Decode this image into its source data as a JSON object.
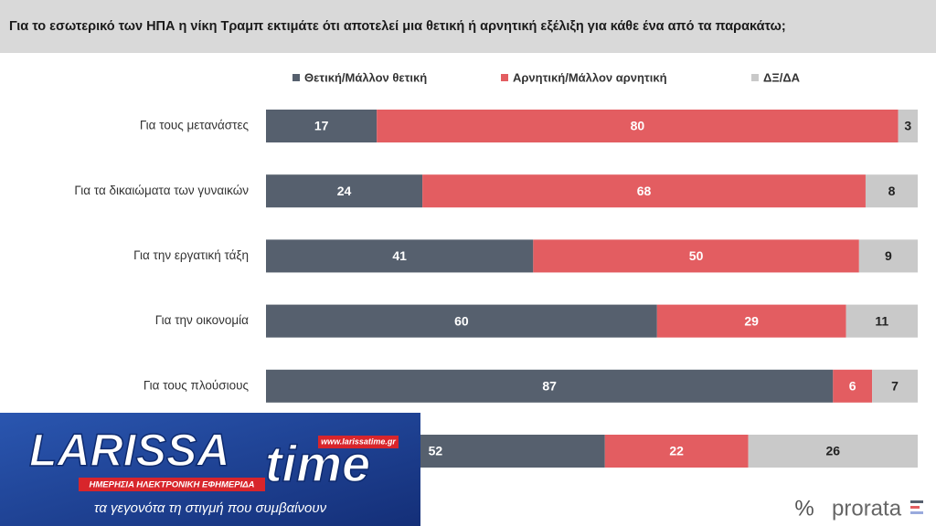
{
  "chart_data": {
    "type": "stacked-bar-horizontal",
    "title": "Για το εσωτερικό των ΗΠΑ η νίκη Τραμπ εκτιμάτε ότι αποτελεί μια θετική ή αρνητική εξέλιξη για κάθε ένα από τα παρακάτω;",
    "categories": [
      "Για τους μετανάστες",
      "Για τα δικαιώματα των γυναικών",
      "Για την εργατική τάξη",
      "Για την οικονομία",
      "Για τους πλούσιους",
      null
    ],
    "series": [
      {
        "name": "Θετική/Μάλλον θετική",
        "color": "#56606e",
        "values": [
          17,
          24,
          41,
          60,
          87,
          52
        ]
      },
      {
        "name": "Αρνητική/Μάλλον αρνητική",
        "color": "#e35d61",
        "values": [
          80,
          68,
          50,
          29,
          6,
          22
        ]
      },
      {
        "name": "ΔΞ/ΔΑ",
        "color": "#c9c9c9",
        "values": [
          3,
          8,
          9,
          11,
          7,
          26
        ]
      }
    ],
    "legend": "top"
  },
  "logo": {
    "name": "LARISSA",
    "name2": "time",
    "url": "www.larissatime.gr",
    "tagline": "ΗΜΕΡΗΣΙΑ ΗΛΕΚΤΡΟΝΙΚΗ ΕΦΗΜΕΡΙΔΑ",
    "slogan": "τα γεγονότα τη στιγμή που συμβαίνουν"
  },
  "brand": {
    "symbol": "%",
    "name": "prorata"
  }
}
